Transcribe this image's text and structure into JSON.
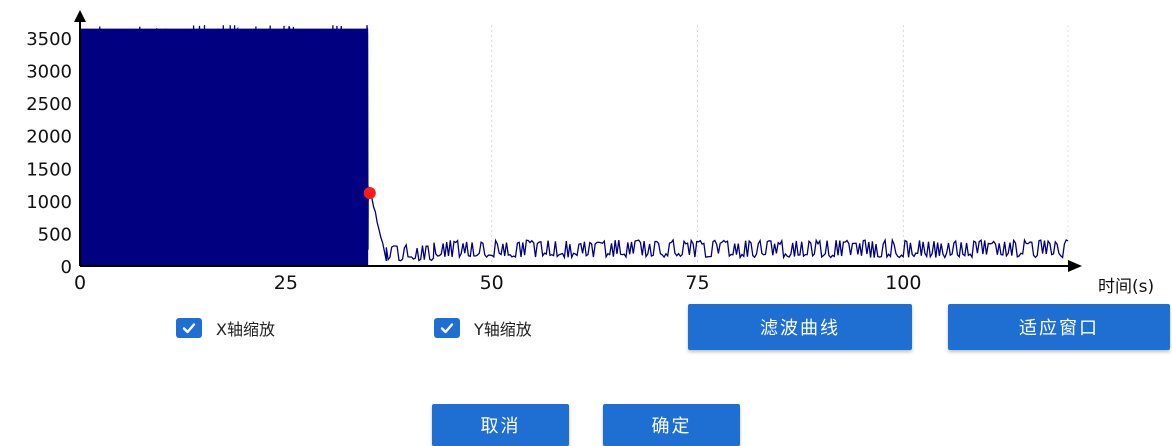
{
  "chart_data": {
    "type": "line",
    "xlabel": "时间(s)",
    "ylabel": "",
    "xlim": [
      0,
      120
    ],
    "ylim": [
      0,
      3700
    ],
    "x_ticks": [
      0,
      25,
      50,
      75,
      100
    ],
    "y_ticks": [
      0,
      500,
      1000,
      1500,
      2000,
      2500,
      3000,
      3500
    ],
    "grid": "vertical dotted at x ticks",
    "series_color": "#000080",
    "marker": {
      "x": 35.2,
      "y": 1120,
      "color": "#ff1a1a"
    },
    "series": [
      {
        "segments": [
          {
            "x_start": 0,
            "x_end": 35,
            "low": 0,
            "high": 3700,
            "pattern": "dense oscillation"
          },
          {
            "x_start": 35,
            "x_end": 37.2,
            "from": 1250,
            "to": 130,
            "pattern": "decay"
          },
          {
            "x_start": 37.2,
            "x_end": 43,
            "low": 80,
            "high": 330,
            "pattern": "oscillation"
          },
          {
            "x_start": 43,
            "x_end": 120,
            "low": 130,
            "high": 400,
            "pattern": "oscillation"
          }
        ]
      }
    ]
  },
  "controls": {
    "x_zoom_label": "X轴缩放",
    "y_zoom_label": "Y轴缩放",
    "x_zoom_checked": true,
    "y_zoom_checked": true,
    "filter_button": "滤波曲线",
    "fit_button": "适应窗口",
    "cancel_button": "取消",
    "confirm_button": "确定"
  },
  "colors": {
    "button_bg": "#1f6fd2",
    "button_text": "#ffffff",
    "series": "#000080",
    "marker": "#ff1a1a"
  }
}
